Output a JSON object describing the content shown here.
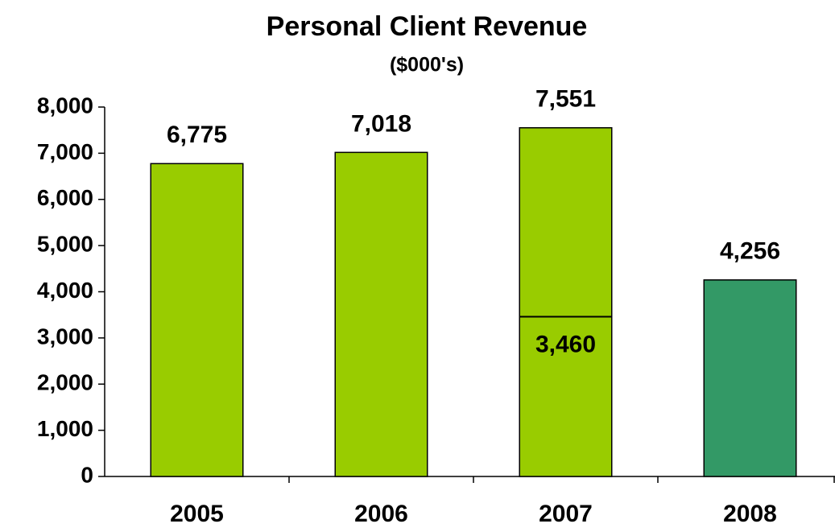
{
  "chart_data": {
    "type": "bar",
    "title": "Personal Client Revenue",
    "subtitle": "($000's)",
    "categories": [
      "2005",
      "2006",
      "2007",
      "2008"
    ],
    "values": [
      6775,
      7018,
      7551,
      4256
    ],
    "value_labels": [
      "6,775",
      "7,018",
      "7,551",
      "4,256"
    ],
    "colors": [
      "#99cc00",
      "#99cc00",
      "#99cc00",
      "#339966"
    ],
    "ylim": [
      0,
      8000
    ],
    "yticks": [
      0,
      {
        "value": 1000,
        "label": "1,000"
      },
      {
        "value": 2000,
        "label": "2,000"
      },
      {
        "value": 3000,
        "label": "3,000"
      },
      {
        "value": 4000,
        "label": "4,000"
      },
      {
        "value": 5000,
        "label": "5,000"
      },
      {
        "value": 6000,
        "label": "6,000"
      },
      {
        "value": 7000,
        "label": "7,000"
      },
      {
        "value": 8000,
        "label": "8,000"
      }
    ],
    "grid": false,
    "annotations": [
      {
        "category": "2007",
        "value": 3460,
        "label": "3,460"
      }
    ]
  }
}
